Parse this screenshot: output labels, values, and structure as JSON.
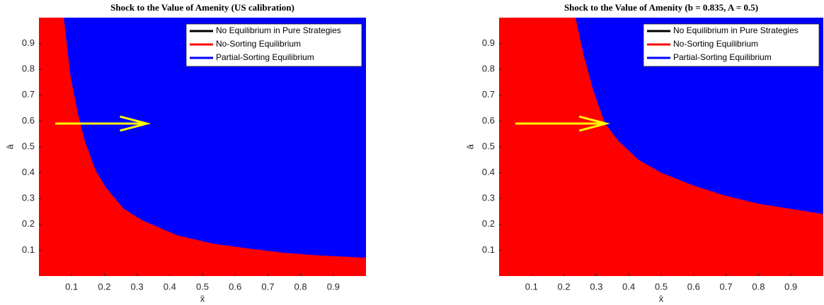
{
  "chart_data": [
    {
      "type": "region",
      "title": "Shock to the Value of Amenity (US calibration)",
      "xlabel": "x̄",
      "ylabel": "ā",
      "xlim": [
        0,
        1
      ],
      "ylim": [
        0,
        1
      ],
      "xticks": [
        0.1,
        0.2,
        0.3,
        0.4,
        0.5,
        0.6,
        0.7,
        0.8,
        0.9
      ],
      "yticks": [
        0.1,
        0.2,
        0.3,
        0.4,
        0.5,
        0.6,
        0.7,
        0.8,
        0.9
      ],
      "legend": "upper right",
      "series": [
        {
          "name": "No Equilibrium in Pure Strategies",
          "color": "#000000"
        },
        {
          "name": "No-Sorting Equilibrium",
          "color": "#ff0000"
        },
        {
          "name": "Partial-Sorting Equilibrium",
          "color": "#0000ff"
        }
      ],
      "boundary": {
        "x": [
          0.076,
          0.097,
          0.119,
          0.141,
          0.173,
          0.206,
          0.26,
          0.314,
          0.422,
          0.53,
          0.639,
          0.747,
          0.855,
          1.0
        ],
        "y": [
          1.0,
          0.77,
          0.63,
          0.52,
          0.41,
          0.34,
          0.26,
          0.217,
          0.158,
          0.126,
          0.107,
          0.09,
          0.08,
          0.071
        ]
      },
      "arrow": {
        "x": [
          0.05,
          0.33
        ],
        "y": [
          0.59,
          0.59
        ],
        "color": "#ffff00"
      }
    },
    {
      "type": "region",
      "title": "Shock to the Value of Amenity (b = 0.835, A = 0.5)",
      "xlabel": "x̄",
      "ylabel": "ā",
      "xlim": [
        0,
        1
      ],
      "ylim": [
        0,
        1
      ],
      "xticks": [
        0.1,
        0.2,
        0.3,
        0.4,
        0.5,
        0.6,
        0.7,
        0.8,
        0.9
      ],
      "yticks": [
        0.1,
        0.2,
        0.3,
        0.4,
        0.5,
        0.6,
        0.7,
        0.8,
        0.9
      ],
      "legend": "upper right",
      "series": [
        {
          "name": "No Equilibrium in Pure Strategies",
          "color": "#000000"
        },
        {
          "name": "No-Sorting Equilibrium",
          "color": "#ff0000"
        },
        {
          "name": "Partial-Sorting Equilibrium",
          "color": "#0000ff"
        }
      ],
      "boundary": {
        "x": [
          0.236,
          0.26,
          0.29,
          0.327,
          0.37,
          0.43,
          0.5,
          0.6,
          0.7,
          0.8,
          0.9,
          1.0
        ],
        "y": [
          1.0,
          0.86,
          0.72,
          0.59,
          0.52,
          0.45,
          0.4,
          0.35,
          0.31,
          0.28,
          0.26,
          0.24
        ]
      },
      "arrow": {
        "x": [
          0.05,
          0.33
        ],
        "y": [
          0.59,
          0.59
        ],
        "color": "#ffff00"
      }
    }
  ]
}
